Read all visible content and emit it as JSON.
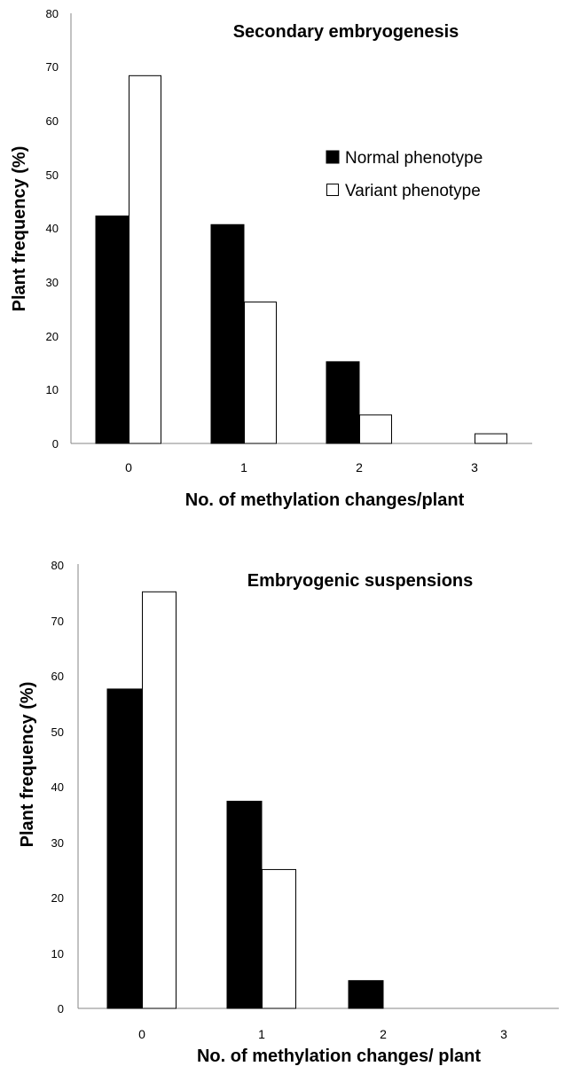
{
  "chart_data": [
    {
      "type": "bar",
      "title": "Secondary embryogenesis",
      "xlabel": "No. of methylation changes/plant",
      "ylabel": "Plant frequency (%)",
      "categories": [
        "0",
        "1",
        "2",
        "3"
      ],
      "yticks": [
        "0",
        "10",
        "20",
        "30",
        "40",
        "50",
        "60",
        "70",
        "80"
      ],
      "ylim": [
        0,
        80
      ],
      "grid": false,
      "legend": "right",
      "series": [
        {
          "name": "Normal phenotype",
          "color": "#000000",
          "values": [
            42.3,
            40.7,
            15.2,
            0
          ]
        },
        {
          "name": "Variant phenotype",
          "color": "#ffffff",
          "values": [
            68.4,
            26.3,
            5.3,
            1.8
          ]
        }
      ]
    },
    {
      "type": "bar",
      "title": "Embryogenic suspensions",
      "xlabel": "No. of methylation changes/ plant",
      "ylabel": "Plant frequency (%)",
      "categories": [
        "0",
        "1",
        "2",
        "3"
      ],
      "yticks": [
        "0",
        "10",
        "20",
        "30",
        "40",
        "50",
        "60",
        "70",
        "80"
      ],
      "ylim": [
        0,
        80
      ],
      "grid": false,
      "legend": "none",
      "series": [
        {
          "color": "#000000",
          "values": [
            57.5,
            37.3,
            5.0,
            0
          ]
        },
        {
          "color": "#ffffff",
          "values": [
            75.0,
            25.0,
            0,
            0
          ]
        }
      ]
    }
  ]
}
